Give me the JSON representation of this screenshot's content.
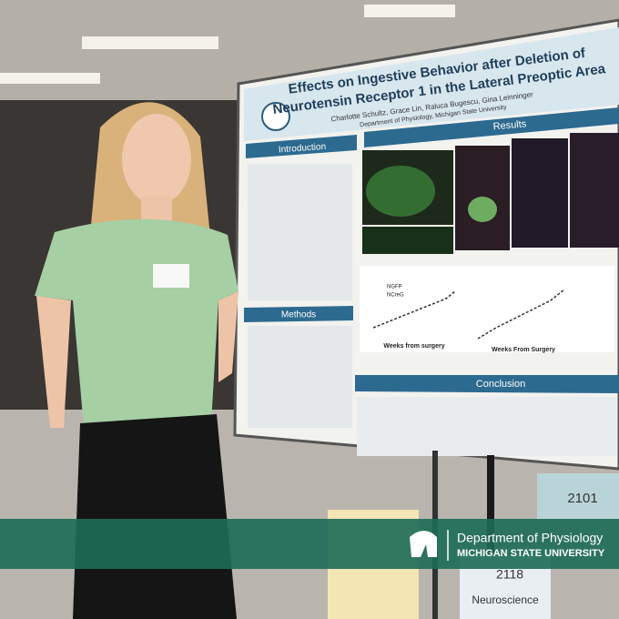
{
  "poster": {
    "title": [
      "Effects on Ingestive Behavior after Deletion of",
      "Neurotensin Receptor 1 in the Lateral Preoptic Area"
    ],
    "authors": "Charlotte Schultz, Grace Lin, Raluca Bugescu, Gina Leinninger",
    "affiliation": "Department of Physiology, Michigan State University",
    "sections": {
      "introduction": "Introduction",
      "results": "Results",
      "methods": "Methods",
      "conclusion": "Conclusion"
    },
    "axis_labels": [
      "Weeks from surgery",
      "Weeks From Surgery"
    ],
    "legend": [
      "NGFP",
      "NCreG"
    ]
  },
  "signs": [
    "2101",
    "2118",
    "Neuroscience"
  ],
  "banner": {
    "department": "Department of Physiology",
    "university": "MICHIGAN STATE UNIVERSITY"
  }
}
